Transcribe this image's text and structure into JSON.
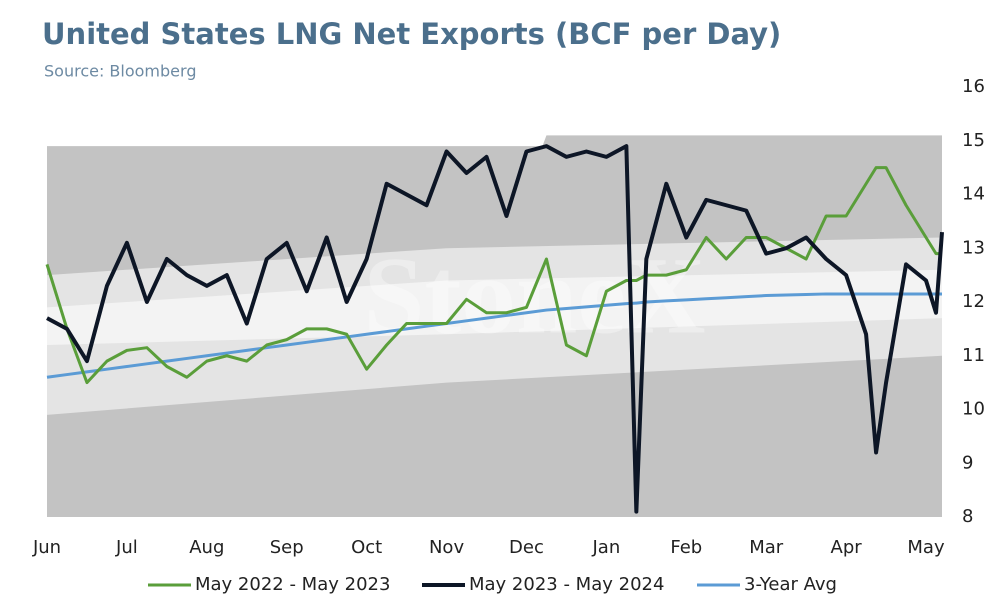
{
  "chart_data": {
    "type": "line",
    "title": "United States LNG Net Exports (BCF per Day)",
    "subtitle": "Source: Bloomberg",
    "watermark": "StoneX",
    "x": [
      0,
      0.25,
      0.5,
      0.75,
      1,
      1.25,
      1.5,
      1.75,
      2,
      2.25,
      2.5,
      2.75,
      3,
      3.25,
      3.5,
      3.75,
      4,
      4.25,
      4.5,
      4.75,
      5,
      5.25,
      5.5,
      5.75,
      6,
      6.25,
      6.5,
      6.75,
      7,
      7.25,
      7.375,
      7.5,
      7.75,
      8,
      8.25,
      8.5,
      8.75,
      9,
      9.25,
      9.5,
      9.75,
      10,
      10.25,
      10.375,
      10.5,
      10.75,
      11,
      11.125,
      11.2
    ],
    "series": [
      {
        "name": "May 2022 - May 2023",
        "color": "#5a9e3a",
        "width": 3,
        "values": [
          12.7,
          11.5,
          10.5,
          10.9,
          11.1,
          11.15,
          10.8,
          10.6,
          10.9,
          11.0,
          10.9,
          11.2,
          11.3,
          11.5,
          11.5,
          11.4,
          10.75,
          11.2,
          11.6,
          11.6,
          11.6,
          12.05,
          11.8,
          11.8,
          11.9,
          12.8,
          11.2,
          11.0,
          12.2,
          12.4,
          12.4,
          12.5,
          12.5,
          12.6,
          13.2,
          12.8,
          13.2,
          13.2,
          13.0,
          12.8,
          13.6,
          13.6,
          14.2,
          14.5,
          14.5,
          13.8,
          13.2,
          12.9,
          12.9
        ]
      },
      {
        "name": "May 2023 - May 2024",
        "color": "#0d1626",
        "width": 4,
        "values": [
          11.7,
          11.5,
          10.9,
          12.3,
          13.1,
          12.0,
          12.8,
          12.5,
          12.3,
          12.5,
          11.6,
          12.8,
          13.1,
          12.2,
          13.2,
          12.0,
          12.8,
          14.2,
          14.0,
          13.8,
          14.8,
          14.4,
          14.7,
          13.6,
          14.8,
          14.9,
          14.7,
          14.8,
          14.7,
          14.9,
          8.1,
          12.8,
          14.2,
          13.2,
          13.9,
          13.8,
          13.7,
          12.9,
          13.0,
          13.2,
          12.8,
          12.5,
          11.4,
          9.2,
          10.5,
          12.7,
          12.4,
          11.8,
          13.3
        ]
      },
      {
        "name": "3-Year Avg",
        "color": "#5b9bd5",
        "width": 3,
        "values": [
          10.6,
          10.65,
          10.7,
          10.75,
          10.8,
          10.85,
          10.9,
          10.95,
          11.0,
          11.05,
          11.1,
          11.15,
          11.2,
          11.25,
          11.3,
          11.35,
          11.4,
          11.45,
          11.5,
          11.55,
          11.6,
          11.65,
          11.7,
          11.75,
          11.8,
          11.85,
          11.88,
          11.91,
          11.94,
          11.97,
          11.98,
          12.0,
          12.02,
          12.04,
          12.06,
          12.08,
          12.1,
          12.12,
          12.13,
          12.14,
          12.15,
          12.15,
          12.15,
          12.15,
          12.15,
          12.15,
          12.15,
          12.15,
          12.15
        ]
      }
    ],
    "ranges": [
      {
        "color": "#c3c3c3",
        "x": [
          0,
          6.2,
          6.25,
          11.2
        ],
        "upper": [
          14.9,
          14.9,
          15.1,
          15.1
        ],
        "lower": [
          8,
          8,
          8,
          8
        ]
      },
      {
        "color": "#e4e4e4",
        "x": [
          0,
          5,
          11.2
        ],
        "upper": [
          12.5,
          13.0,
          13.2
        ],
        "lower": [
          9.9,
          10.5,
          11.0
        ]
      },
      {
        "color": "#f3f3f3",
        "x": [
          0,
          5,
          11.2
        ],
        "upper": [
          11.9,
          12.4,
          12.6
        ],
        "lower": [
          11.2,
          11.4,
          11.7
        ]
      }
    ],
    "xlim": [
      0,
      11.2
    ],
    "xticks": [
      {
        "value": 0,
        "label": "Jun"
      },
      {
        "value": 1,
        "label": "Jul"
      },
      {
        "value": 2,
        "label": "Aug"
      },
      {
        "value": 3,
        "label": "Sep"
      },
      {
        "value": 4,
        "label": "Oct"
      },
      {
        "value": 5,
        "label": "Nov"
      },
      {
        "value": 6,
        "label": "Dec"
      },
      {
        "value": 7,
        "label": "Jan"
      },
      {
        "value": 8,
        "label": "Feb"
      },
      {
        "value": 9,
        "label": "Mar"
      },
      {
        "value": 10,
        "label": "Apr"
      },
      {
        "value": 11,
        "label": "May"
      }
    ],
    "ylim": [
      8,
      16
    ],
    "yticks": [
      8,
      9,
      10,
      11,
      12,
      13,
      14,
      15,
      16
    ]
  }
}
